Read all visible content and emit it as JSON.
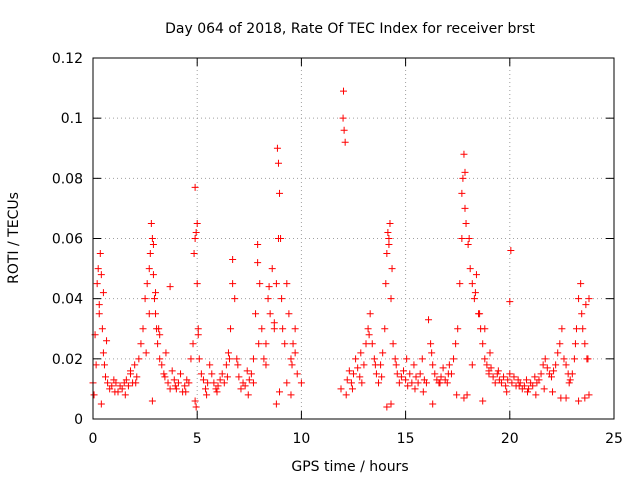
{
  "chart_data": {
    "type": "scatter",
    "title": "Day 064 of 2018, Rate Of TEC Index for receiver brst",
    "xlabel": "GPS time / hours",
    "ylabel": "ROTI / TECUs",
    "xlim": [
      0,
      25
    ],
    "ylim": [
      0,
      0.12
    ],
    "xticks": [
      0,
      5,
      10,
      15,
      20,
      25
    ],
    "xtick_labels": [
      "0",
      "5",
      "10",
      "15",
      "20",
      "25"
    ],
    "yticks": [
      0,
      0.02,
      0.04,
      0.06,
      0.08,
      0.1,
      0.12
    ],
    "ytick_labels": [
      "0",
      "0.02",
      "0.04",
      "0.06",
      "0.08",
      "0.1",
      "0.12"
    ],
    "grid": true,
    "marker": "plus",
    "color": "#ff0000",
    "series": [
      {
        "name": "ROTI",
        "x": [
          0.0,
          0.1,
          0.2,
          0.25,
          0.3,
          0.35,
          0.4,
          0.45,
          0.5,
          0.55,
          0.6,
          0.7,
          0.8,
          0.9,
          1.0,
          1.1,
          1.2,
          1.3,
          1.4,
          1.5,
          1.6,
          1.7,
          1.8,
          1.9,
          2.0,
          2.1,
          2.2,
          2.3,
          2.4,
          2.5,
          2.6,
          2.7,
          2.75,
          2.8,
          2.85,
          2.9,
          2.95,
          3.0,
          3.05,
          3.1,
          3.15,
          3.2,
          3.3,
          3.4,
          3.5,
          3.6,
          3.7,
          3.8,
          3.9,
          4.0,
          4.1,
          4.2,
          4.3,
          4.4,
          4.5,
          4.6,
          4.7,
          4.8,
          4.85,
          4.9,
          4.95,
          5.0,
          5.05,
          5.1,
          5.2,
          5.3,
          5.4,
          5.5,
          5.6,
          5.7,
          5.8,
          5.9,
          6.0,
          6.1,
          6.2,
          6.3,
          6.4,
          6.5,
          6.6,
          6.7,
          6.8,
          6.9,
          7.0,
          7.1,
          7.2,
          7.3,
          7.4,
          7.5,
          7.6,
          7.7,
          7.8,
          7.9,
          8.0,
          8.1,
          8.2,
          8.3,
          8.4,
          8.5,
          8.6,
          8.7,
          8.8,
          8.85,
          8.9,
          8.95,
          9.0,
          9.1,
          9.2,
          9.3,
          9.4,
          9.5,
          9.6,
          9.7,
          9.8,
          12.0,
          12.02,
          12.05,
          12.1,
          12.2,
          12.3,
          12.4,
          12.5,
          12.6,
          12.7,
          12.8,
          12.9,
          13.0,
          13.1,
          13.2,
          13.3,
          13.4,
          13.5,
          13.6,
          13.7,
          13.8,
          13.9,
          14.0,
          14.1,
          14.15,
          14.2,
          14.25,
          14.3,
          14.4,
          14.5,
          14.6,
          14.7,
          14.8,
          14.9,
          15.0,
          15.1,
          15.2,
          15.3,
          15.4,
          15.5,
          15.6,
          15.7,
          15.8,
          15.9,
          16.0,
          16.1,
          16.2,
          16.3,
          16.4,
          16.5,
          16.6,
          16.7,
          16.8,
          16.9,
          17.0,
          17.1,
          17.2,
          17.3,
          17.4,
          17.5,
          17.6,
          17.7,
          17.75,
          17.8,
          17.85,
          17.9,
          18.0,
          18.1,
          18.2,
          18.3,
          18.4,
          18.5,
          18.6,
          18.7,
          18.8,
          18.9,
          19.0,
          19.1,
          19.2,
          19.3,
          19.4,
          19.5,
          19.6,
          19.7,
          19.8,
          19.9,
          20.0,
          20.1,
          20.2,
          20.3,
          20.4,
          20.5,
          20.6,
          20.7,
          20.8,
          20.9,
          21.0,
          21.1,
          21.2,
          21.3,
          21.4,
          21.5,
          21.6,
          21.7,
          21.8,
          21.9,
          22.0,
          22.1,
          22.2,
          22.3,
          22.4,
          22.5,
          22.6,
          22.7,
          22.8,
          22.9,
          23.0,
          23.1,
          23.2,
          23.3,
          23.4,
          23.5,
          23.6,
          23.7,
          23.8,
          0.05,
          0.15,
          0.3,
          0.5,
          0.65,
          1.05,
          1.55,
          2.05,
          2.55,
          2.7,
          2.9,
          3.0,
          3.2,
          3.45,
          3.95,
          4.45,
          4.9,
          5.0,
          5.45,
          5.95,
          6.45,
          6.7,
          6.95,
          7.45,
          7.7,
          7.95,
          8.3,
          8.7,
          8.9,
          9.05,
          9.3,
          9.55,
          9.7,
          12.15,
          12.45,
          12.85,
          13.25,
          13.55,
          13.85,
          14.05,
          14.2,
          14.35,
          14.55,
          15.05,
          15.45,
          15.85,
          16.25,
          16.65,
          17.05,
          17.45,
          17.7,
          17.85,
          18.05,
          18.35,
          18.55,
          18.8,
          19.05,
          19.45,
          19.85,
          20.05,
          20.45,
          20.85,
          21.25,
          21.65,
          22.05,
          22.45,
          22.85,
          23.15,
          23.45,
          23.65,
          23.75,
          0.4,
          2.85,
          4.95,
          8.8,
          8.95,
          9.5,
          14.3,
          17.8,
          17.95,
          18.7,
          20.0,
          23.6,
          23.8,
          4.9,
          5.05,
          6.55,
          7.9,
          8.45,
          14.1,
          16.3,
          18.2,
          19.0,
          23.3,
          22.7,
          1.8,
          3.7,
          10.0,
          11.9
        ],
        "y": [
          0.012,
          0.028,
          0.045,
          0.05,
          0.038,
          0.055,
          0.048,
          0.03,
          0.022,
          0.018,
          0.014,
          0.012,
          0.01,
          0.011,
          0.013,
          0.012,
          0.009,
          0.011,
          0.01,
          0.012,
          0.013,
          0.011,
          0.015,
          0.012,
          0.018,
          0.014,
          0.02,
          0.025,
          0.03,
          0.04,
          0.045,
          0.05,
          0.055,
          0.065,
          0.06,
          0.048,
          0.04,
          0.035,
          0.03,
          0.025,
          0.03,
          0.02,
          0.018,
          0.015,
          0.022,
          0.012,
          0.01,
          0.016,
          0.013,
          0.01,
          0.012,
          0.015,
          0.009,
          0.011,
          0.013,
          0.012,
          0.02,
          0.025,
          0.055,
          0.077,
          0.062,
          0.045,
          0.03,
          0.02,
          0.015,
          0.013,
          0.01,
          0.012,
          0.018,
          0.015,
          0.012,
          0.01,
          0.011,
          0.013,
          0.015,
          0.012,
          0.018,
          0.022,
          0.03,
          0.053,
          0.04,
          0.02,
          0.014,
          0.01,
          0.012,
          0.011,
          0.016,
          0.013,
          0.015,
          0.02,
          0.035,
          0.058,
          0.045,
          0.03,
          0.02,
          0.025,
          0.04,
          0.035,
          0.05,
          0.03,
          0.045,
          0.09,
          0.085,
          0.075,
          0.06,
          0.03,
          0.025,
          0.045,
          0.035,
          0.02,
          0.025,
          0.03,
          0.015,
          0.1,
          0.109,
          0.096,
          0.092,
          0.013,
          0.016,
          0.012,
          0.015,
          0.02,
          0.017,
          0.014,
          0.012,
          0.018,
          0.025,
          0.03,
          0.035,
          0.025,
          0.02,
          0.015,
          0.012,
          0.018,
          0.022,
          0.03,
          0.055,
          0.062,
          0.06,
          0.065,
          0.04,
          0.025,
          0.02,
          0.015,
          0.012,
          0.014,
          0.016,
          0.013,
          0.011,
          0.015,
          0.012,
          0.018,
          0.014,
          0.012,
          0.015,
          0.02,
          0.013,
          0.012,
          0.033,
          0.025,
          0.018,
          0.015,
          0.013,
          0.012,
          0.014,
          0.017,
          0.013,
          0.012,
          0.018,
          0.015,
          0.02,
          0.025,
          0.03,
          0.045,
          0.06,
          0.08,
          0.088,
          0.07,
          0.065,
          0.058,
          0.05,
          0.045,
          0.04,
          0.048,
          0.035,
          0.03,
          0.025,
          0.02,
          0.018,
          0.015,
          0.017,
          0.014,
          0.012,
          0.015,
          0.013,
          0.012,
          0.014,
          0.011,
          0.013,
          0.015,
          0.012,
          0.014,
          0.011,
          0.013,
          0.012,
          0.01,
          0.011,
          0.013,
          0.01,
          0.012,
          0.011,
          0.014,
          0.012,
          0.013,
          0.015,
          0.018,
          0.02,
          0.017,
          0.015,
          0.014,
          0.016,
          0.018,
          0.022,
          0.025,
          0.03,
          0.02,
          0.018,
          0.015,
          0.013,
          0.015,
          0.02,
          0.03,
          0.04,
          0.045,
          0.03,
          0.025,
          0.02,
          0.04,
          0.008,
          0.018,
          0.035,
          0.042,
          0.026,
          0.009,
          0.008,
          0.012,
          0.022,
          0.035,
          0.058,
          0.042,
          0.028,
          0.014,
          0.011,
          0.009,
          0.06,
          0.065,
          0.008,
          0.009,
          0.014,
          0.045,
          0.018,
          0.008,
          0.012,
          0.025,
          0.018,
          0.032,
          0.06,
          0.04,
          0.012,
          0.018,
          0.022,
          0.008,
          0.01,
          0.022,
          0.028,
          0.018,
          0.014,
          0.045,
          0.058,
          0.05,
          0.018,
          0.02,
          0.01,
          0.009,
          0.022,
          0.012,
          0.015,
          0.008,
          0.075,
          0.082,
          0.06,
          0.042,
          0.035,
          0.03,
          0.022,
          0.016,
          0.009,
          0.056,
          0.011,
          0.009,
          0.008,
          0.01,
          0.009,
          0.007,
          0.012,
          0.025,
          0.035,
          0.038,
          0.02,
          0.005,
          0.006,
          0.004,
          0.005,
          0.009,
          0.008,
          0.005,
          0.007,
          0.008,
          0.006,
          0.039,
          0.007,
          0.008,
          0.006,
          0.028,
          0.02,
          0.052,
          0.044,
          0.004,
          0.005,
          0.018,
          0.016,
          0.006,
          0.007,
          0.016,
          0.044,
          0.012,
          0.01
        ]
      }
    ]
  }
}
